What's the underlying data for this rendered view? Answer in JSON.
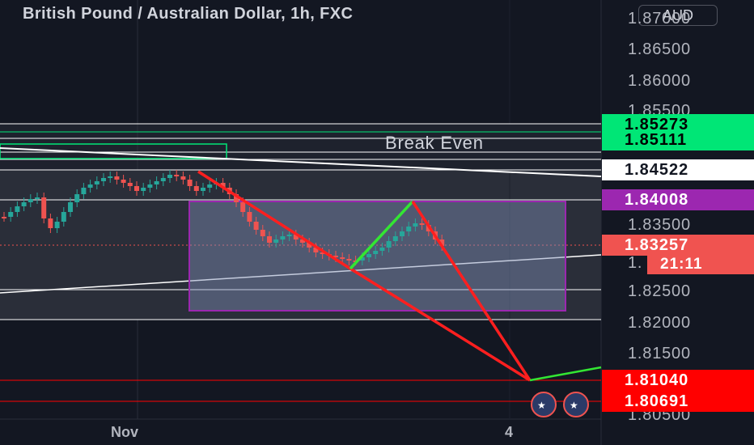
{
  "header": {
    "title": "British Pound / Australian Dollar, 1h, FXC",
    "currency_button": "AUD"
  },
  "price_axis": {
    "labels": [
      "1.87000",
      "1.86500",
      "1.86000",
      "1.85500",
      "1.83500",
      "1.82500",
      "1.82000",
      "1.81500",
      "1.80500"
    ],
    "badges": [
      {
        "value": "1.85273",
        "bg": "#00e676",
        "fg": "#000000"
      },
      {
        "value": "1.85111",
        "bg": "#00e676",
        "fg": "#000000"
      },
      {
        "value": "1.84522",
        "bg": "#ffffff",
        "fg": "#131722"
      },
      {
        "value": "1.84008",
        "bg": "#9c27b0",
        "fg": "#ffffff"
      },
      {
        "value": "1.83257",
        "bg": "#f05350",
        "fg": "#ffffff"
      },
      {
        "value": "1.81040",
        "bg": "#ff0000",
        "fg": "#ffffff"
      },
      {
        "value": "1.80691",
        "bg": "#ff0000",
        "fg": "#ffffff"
      }
    ],
    "countdown": "21:11",
    "partial_price": "1."
  },
  "time_axis": {
    "labels": [
      "Nov",
      "4"
    ]
  },
  "annotations": {
    "break_even": "Break Even"
  },
  "colors": {
    "bull": "#26a69a",
    "bear": "#ef5350",
    "background": "#131722",
    "zone": "#9c27b0",
    "zigzag_red": "#ff1f1f",
    "zigzag_green": "#33e633"
  }
}
